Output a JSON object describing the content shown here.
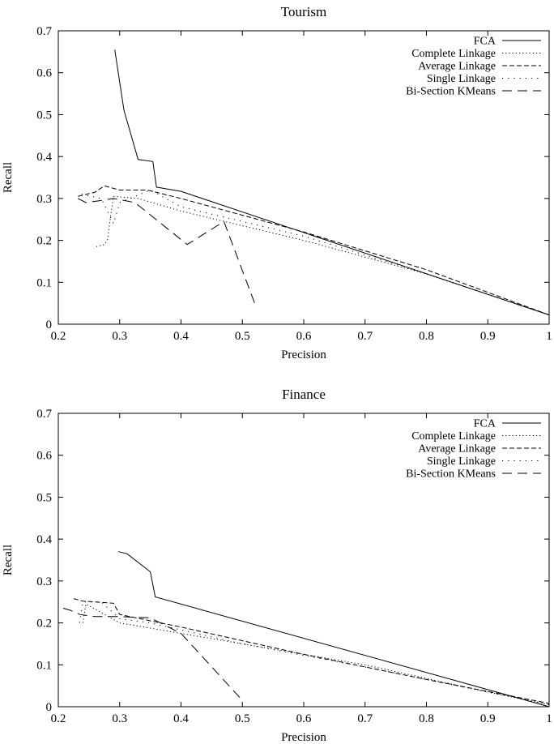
{
  "chart_data": [
    {
      "type": "line",
      "title": "Tourism",
      "xlabel": "Precision",
      "ylabel": "Recall",
      "xlim": [
        0.2,
        1
      ],
      "ylim": [
        0,
        0.7
      ],
      "xticks": [
        "0.2",
        "0.3",
        "0.4",
        "0.5",
        "0.6",
        "0.7",
        "0.8",
        "0.9",
        "1"
      ],
      "yticks": [
        "0",
        "0.1",
        "0.2",
        "0.3",
        "0.4",
        "0.5",
        "0.6",
        "0.7"
      ],
      "legend_position": "top-right",
      "grid": false,
      "series": [
        {
          "name": "FCA",
          "style": "solid",
          "points": [
            [
              0.292,
              0.655
            ],
            [
              0.307,
              0.51
            ],
            [
              0.33,
              0.393
            ],
            [
              0.354,
              0.388
            ],
            [
              0.36,
              0.327
            ],
            [
              0.4,
              0.317
            ],
            [
              1.0,
              0.022
            ]
          ]
        },
        {
          "name": "Complete Linkage",
          "style": "dotted",
          "points": [
            [
              0.262,
              0.185
            ],
            [
              0.275,
              0.19
            ],
            [
              0.28,
              0.2
            ],
            [
              0.285,
              0.255
            ],
            [
              0.29,
              0.305
            ],
            [
              0.33,
              0.3
            ],
            [
              0.4,
              0.27
            ],
            [
              0.6,
              0.2
            ],
            [
              0.8,
              0.12
            ],
            [
              1.0,
              0.022
            ]
          ]
        },
        {
          "name": "Average Linkage",
          "style": "dashed",
          "points": [
            [
              0.232,
              0.305
            ],
            [
              0.26,
              0.315
            ],
            [
              0.275,
              0.33
            ],
            [
              0.3,
              0.32
            ],
            [
              0.345,
              0.32
            ],
            [
              0.4,
              0.3
            ],
            [
              0.6,
              0.22
            ],
            [
              0.8,
              0.13
            ],
            [
              1.0,
              0.022
            ]
          ]
        },
        {
          "name": "Single Linkage",
          "style": "dotted-sparse",
          "points": [
            [
              0.238,
              0.31
            ],
            [
              0.27,
              0.3
            ],
            [
              0.28,
              0.27
            ],
            [
              0.29,
              0.24
            ],
            [
              0.3,
              0.29
            ],
            [
              0.35,
              0.32
            ],
            [
              0.4,
              0.28
            ],
            [
              0.6,
              0.21
            ],
            [
              0.8,
              0.12
            ],
            [
              1.0,
              0.022
            ]
          ]
        },
        {
          "name": "Bi-Section KMeans",
          "style": "long-dash",
          "points": [
            [
              0.232,
              0.3
            ],
            [
              0.245,
              0.29
            ],
            [
              0.27,
              0.295
            ],
            [
              0.29,
              0.3
            ],
            [
              0.325,
              0.29
            ],
            [
              0.41,
              0.19
            ],
            [
              0.47,
              0.245
            ],
            [
              0.52,
              0.05
            ]
          ]
        }
      ]
    },
    {
      "type": "line",
      "title": "Finance",
      "xlabel": "Precision",
      "ylabel": "Recall",
      "xlim": [
        0.2,
        1
      ],
      "ylim": [
        0,
        0.7
      ],
      "xticks": [
        "0.2",
        "0.3",
        "0.4",
        "0.5",
        "0.6",
        "0.7",
        "0.8",
        "0.9",
        "1"
      ],
      "yticks": [
        "0",
        "0.1",
        "0.2",
        "0.3",
        "0.4",
        "0.5",
        "0.6",
        "0.7"
      ],
      "legend_position": "top-right",
      "grid": false,
      "series": [
        {
          "name": "FCA",
          "style": "solid",
          "points": [
            [
              0.298,
              0.37
            ],
            [
              0.312,
              0.365
            ],
            [
              0.35,
              0.322
            ],
            [
              0.358,
              0.262
            ],
            [
              1.0,
              0.0
            ]
          ]
        },
        {
          "name": "Complete Linkage",
          "style": "dotted",
          "points": [
            [
              0.24,
              0.2
            ],
            [
              0.245,
              0.245
            ],
            [
              0.3,
              0.2
            ],
            [
              0.5,
              0.15
            ],
            [
              0.7,
              0.1
            ],
            [
              0.9,
              0.035
            ],
            [
              1.0,
              0.005
            ]
          ]
        },
        {
          "name": "Average Linkage",
          "style": "dashed",
          "points": [
            [
              0.225,
              0.258
            ],
            [
              0.24,
              0.252
            ],
            [
              0.29,
              0.247
            ],
            [
              0.3,
              0.22
            ],
            [
              0.4,
              0.19
            ],
            [
              0.6,
              0.125
            ],
            [
              0.8,
              0.065
            ],
            [
              1.0,
              0.008
            ]
          ]
        },
        {
          "name": "Single Linkage",
          "style": "dotted-sparse",
          "points": [
            [
              0.235,
              0.2
            ],
            [
              0.24,
              0.25
            ],
            [
              0.27,
              0.25
            ],
            [
              0.3,
              0.21
            ],
            [
              0.35,
              0.2
            ],
            [
              0.5,
              0.15
            ],
            [
              0.7,
              0.095
            ],
            [
              0.9,
              0.035
            ],
            [
              1.0,
              0.005
            ]
          ]
        },
        {
          "name": "Bi-Section KMeans",
          "style": "long-dash",
          "points": [
            [
              0.208,
              0.235
            ],
            [
              0.22,
              0.23
            ],
            [
              0.235,
              0.22
            ],
            [
              0.26,
              0.215
            ],
            [
              0.3,
              0.215
            ],
            [
              0.35,
              0.212
            ],
            [
              0.4,
              0.175
            ],
            [
              0.5,
              0.015
            ]
          ]
        }
      ]
    }
  ]
}
